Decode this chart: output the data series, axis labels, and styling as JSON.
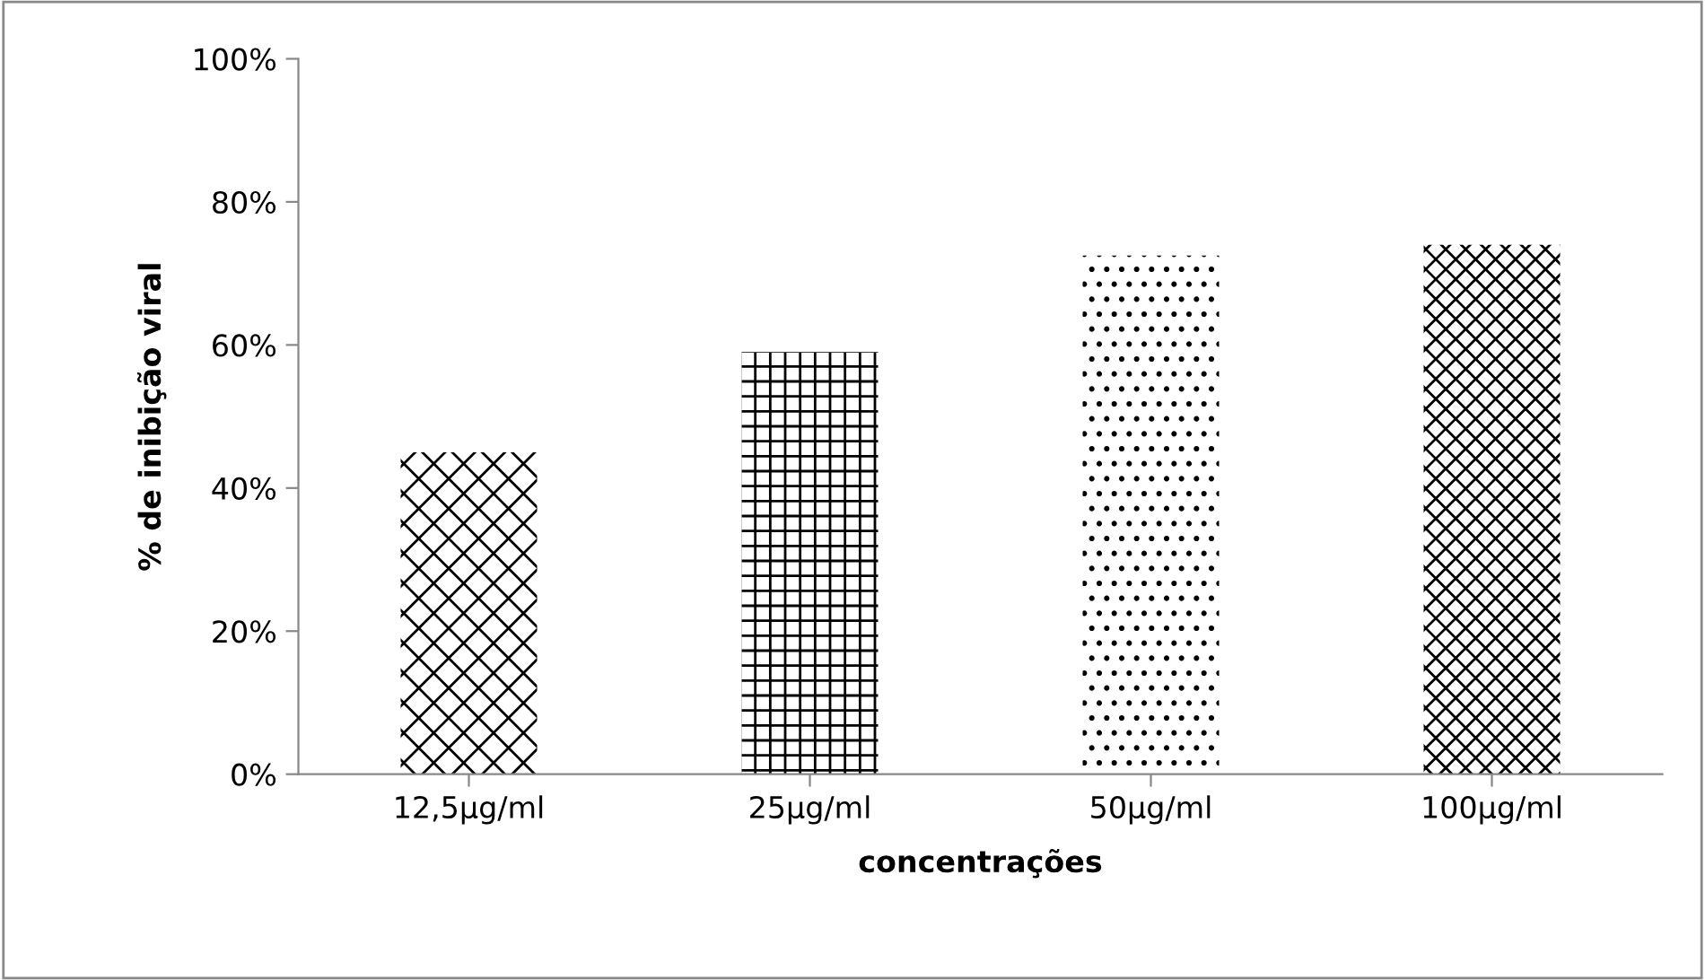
{
  "chart_data": {
    "type": "bar",
    "xlabel": "concentrações",
    "ylabel": "% de inibição viral",
    "categories": [
      "12,5µg/ml",
      "25µg/ml",
      "50µg/ml",
      "100µg/ml"
    ],
    "values": [
      45,
      59,
      72.5,
      74
    ],
    "color": "#000000",
    "ylim": [
      0,
      100
    ],
    "yticks": [
      {
        "value": 0,
        "label": "0%"
      },
      {
        "value": 20,
        "label": "20%"
      },
      {
        "value": 40,
        "label": "40%"
      },
      {
        "value": 60,
        "label": "60%"
      },
      {
        "value": 80,
        "label": "80%"
      },
      {
        "value": 100,
        "label": "100%"
      }
    ],
    "grid": false
  }
}
